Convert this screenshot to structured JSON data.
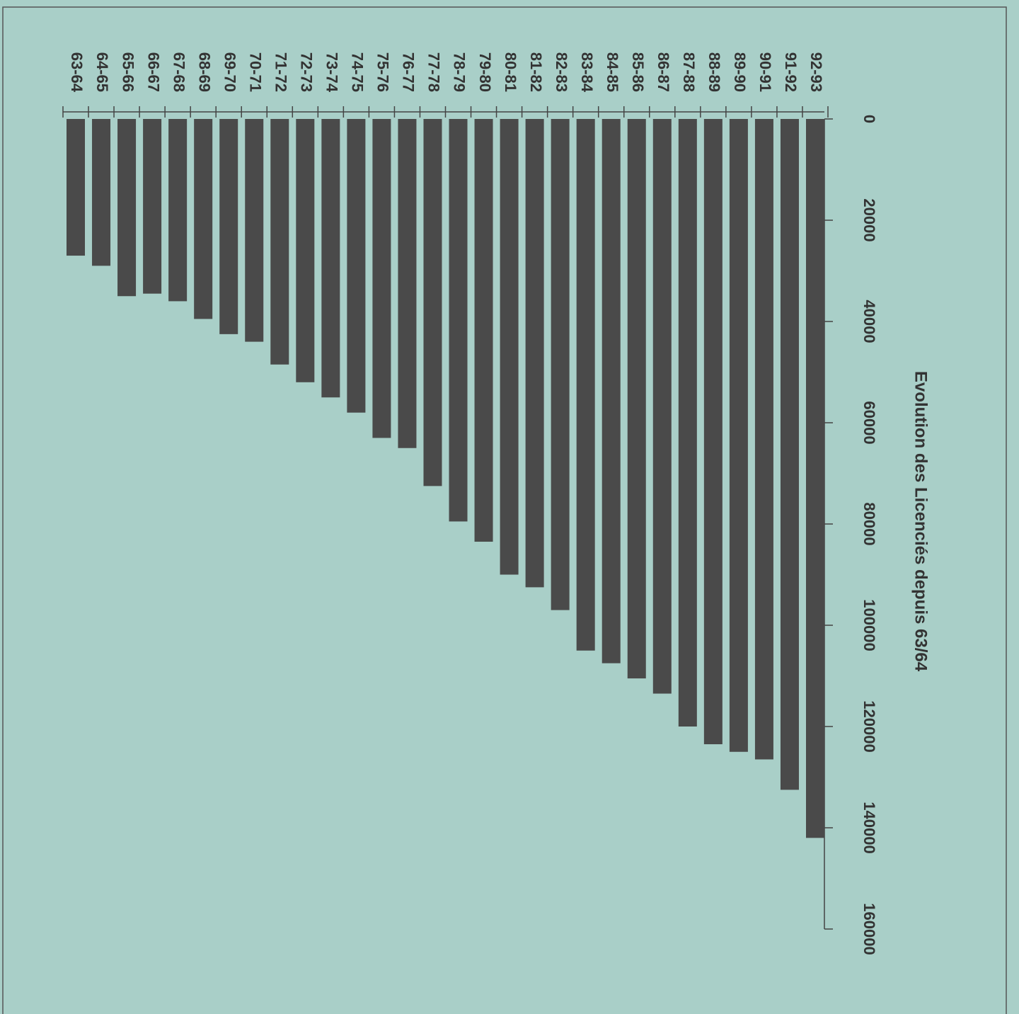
{
  "chart_data": {
    "type": "bar",
    "orientation": "horizontal",
    "title": "Evolution des Licenciés depuis 63/64",
    "categories": [
      "63-64",
      "64-65",
      "65-66",
      "66-67",
      "67-68",
      "68-69",
      "69-70",
      "70-71",
      "71-72",
      "72-73",
      "73-74",
      "74-75",
      "75-76",
      "76-77",
      "77-78",
      "78-79",
      "79-80",
      "80-81",
      "81-82",
      "82-83",
      "83-84",
      "84-85",
      "85-86",
      "86-87",
      "87-88",
      "88-89",
      "89-90",
      "90-91",
      "91-92",
      "92-93"
    ],
    "values": [
      27000,
      29000,
      35000,
      34500,
      36000,
      39500,
      42500,
      44000,
      48500,
      52000,
      55000,
      58000,
      63000,
      65000,
      72500,
      79500,
      83500,
      90000,
      92500,
      97000,
      105000,
      107500,
      110500,
      113500,
      120000,
      123500,
      125000,
      126500,
      132500,
      142000
    ],
    "color": "#4a4a4a",
    "xlim": [
      0,
      160000
    ],
    "xticks": [
      0,
      20000,
      40000,
      60000,
      80000,
      100000,
      120000,
      140000,
      160000
    ]
  }
}
